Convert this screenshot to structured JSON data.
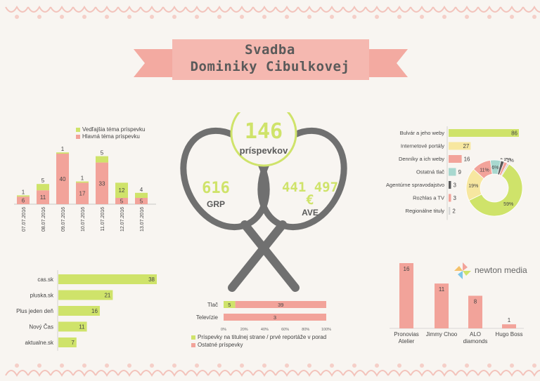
{
  "header": {
    "title_line1": "Svadba",
    "title_line2": "Dominiky Cibulkovej"
  },
  "colors": {
    "green": "#cfe36a",
    "salmon": "#f2a39a",
    "yellow": "#f7e7a0",
    "teal": "#a8d8cf",
    "dark": "#5a5a5a",
    "grey": "#d6d6d6",
    "ribbon": "#f5b8b0",
    "background": "#f8f5f1"
  },
  "center": {
    "posts_value": "146",
    "posts_label": "príspevkov",
    "grp_value": "616",
    "grp_label": "GRP",
    "ave_value": "441 497",
    "ave_currency": "€",
    "ave_label": "AVE"
  },
  "brand": {
    "name": "newton media",
    "icon": "pinwheel-icon"
  },
  "chart_data": [
    {
      "id": "daily",
      "type": "bar",
      "stacked": true,
      "categories": [
        "07.07.2016",
        "08.07.2016",
        "09.07.2016",
        "10.07.2016",
        "11.07.2016",
        "12.07.2016",
        "13.07.2016"
      ],
      "series": [
        {
          "name": "Hlavná téma príspevku",
          "color": "#f2a39a",
          "values": [
            6,
            11,
            40,
            17,
            33,
            5,
            5
          ]
        },
        {
          "name": "Vedľajšia téma príspevku",
          "color": "#cfe36a",
          "values": [
            1,
            5,
            1,
            1,
            5,
            12,
            4
          ]
        }
      ],
      "legend": "top-right",
      "ylim": [
        0,
        50
      ]
    },
    {
      "id": "media_types",
      "type": "bar",
      "orientation": "horizontal",
      "categories": [
        "Bulvár a jeho weby",
        "Internetové portály",
        "Denníky a ich weby",
        "Ostatná tlač",
        "Agentúrne spravodajstvo",
        "Rozhlas a TV",
        "Regionálne tituly"
      ],
      "values": [
        86,
        27,
        16,
        9,
        3,
        3,
        2
      ],
      "colors": [
        "#cfe36a",
        "#f7e7a0",
        "#f2a39a",
        "#a8d8cf",
        "#5a5a5a",
        "#f2a39a",
        "#d6d6d6"
      ],
      "xlim": [
        0,
        86
      ]
    },
    {
      "id": "media_share",
      "type": "pie",
      "donut": true,
      "labels": [
        "Bulvár a jeho weby",
        "Internetové portály",
        "Denníky a ich weby",
        "Ostatná tlač",
        "Agentúrne spravodajstvo",
        "Rozhlas a TV",
        "Regionálne tituly"
      ],
      "values": [
        59,
        19,
        11,
        6,
        2,
        2,
        1
      ],
      "value_labels": [
        "59%",
        "19%",
        "11%",
        "6%",
        "2%",
        "2%",
        "1%"
      ],
      "colors": [
        "#cfe36a",
        "#f7e7a0",
        "#f2a39a",
        "#a8d8cf",
        "#5a5a5a",
        "#f2a39a",
        "#d6d6d6"
      ]
    },
    {
      "id": "sources",
      "type": "bar",
      "orientation": "horizontal",
      "categories": [
        "cas.sk",
        "pluska.sk",
        "Plus jeden deň",
        "Nový Čas",
        "aktualne.sk"
      ],
      "values": [
        38,
        21,
        16,
        11,
        7
      ],
      "color": "#cfe36a",
      "xlim": [
        0,
        38
      ]
    },
    {
      "id": "front_page",
      "type": "bar",
      "orientation": "horizontal",
      "stacked_percent": true,
      "categories": [
        "Tlač",
        "Televízie"
      ],
      "series": [
        {
          "name": "Príspevky na titulnej strane / prvé reportáže v porad",
          "color": "#cfe36a",
          "values": [
            5,
            0
          ]
        },
        {
          "name": "Ostatné príspevky",
          "color": "#f2a39a",
          "values": [
            39,
            3
          ]
        }
      ],
      "x_ticks": [
        "0%",
        "20%",
        "40%",
        "60%",
        "80%",
        "100%"
      ],
      "legend": "bottom"
    },
    {
      "id": "brands",
      "type": "bar",
      "categories": [
        "Pronovias Atelier",
        "Jimmy Choo",
        "ALO diamonds",
        "Hugo Boss"
      ],
      "values": [
        16,
        11,
        8,
        1
      ],
      "color": "#f2a39a",
      "ylim": [
        0,
        16
      ]
    }
  ]
}
